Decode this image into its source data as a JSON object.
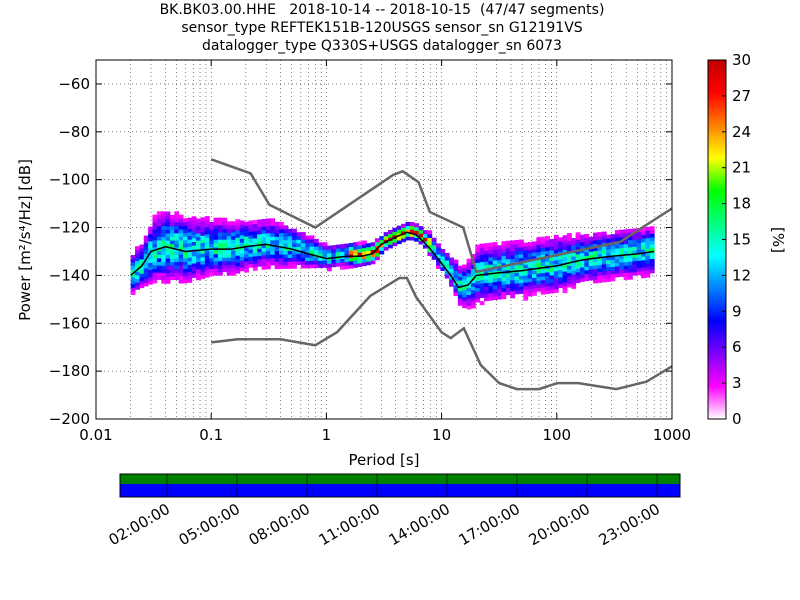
{
  "title_lines": [
    "BK.BK03.00.HHE   2018-10-14 -- 2018-10-15  (47/47 segments)",
    "sensor_type REFTEK151B-120USGS sensor_sn G12191VS",
    "datalogger_type Q330S+USGS datalogger_sn 6073"
  ],
  "chart_data": {
    "type": "heatmap",
    "subtype": "probabilistic_power_spectral_density",
    "xlabel": "Period [s]",
    "ylabel": "Power [m²/s⁴/Hz] [dB]",
    "x_scale": "log",
    "xlim": [
      0.01,
      1000
    ],
    "ylim": [
      -200,
      -50
    ],
    "x_ticks": [
      0.01,
      0.1,
      1,
      10,
      100,
      1000
    ],
    "x_tick_labels": [
      "0.01",
      "0.1",
      "1",
      "10",
      "100",
      "1000"
    ],
    "y_ticks": [
      -200,
      -180,
      -160,
      -140,
      -120,
      -100,
      -80,
      -60
    ],
    "y_tick_labels": [
      "−200",
      "−180",
      "−160",
      "−140",
      "−120",
      "−100",
      "−80",
      "−60"
    ],
    "grid": "dotted, x minor",
    "colorbar": {
      "label": "[%]",
      "range": [
        0,
        30
      ],
      "ticks": [
        0,
        3,
        6,
        9,
        12,
        15,
        18,
        21,
        24,
        27,
        30
      ],
      "tick_labels": [
        "0",
        "3",
        "6",
        "9",
        "12",
        "15",
        "18",
        "21",
        "24",
        "27",
        "30"
      ],
      "colors": [
        "#ffffff",
        "#ff00ff",
        "#8000ff",
        "#0000ff",
        "#0080ff",
        "#00ffff",
        "#00ff80",
        "#00ff00",
        "#ffff00",
        "#ff8000",
        "#ff0000",
        "#c00000"
      ]
    },
    "noise_model_high": {
      "name": "NHNM",
      "color": "#666666",
      "x": [
        0.1,
        0.22,
        0.32,
        0.8,
        3.8,
        4.6,
        6.3,
        7.9,
        15.4,
        20,
        354.8,
        1000
      ],
      "y": [
        -91.5,
        -97.4,
        -110.5,
        -120,
        -98,
        -96.5,
        -101,
        -113.5,
        -120,
        -138.5,
        -126,
        -112
      ]
    },
    "noise_model_low": {
      "name": "NLNM",
      "color": "#666666",
      "x": [
        0.1,
        0.17,
        0.4,
        0.8,
        1.24,
        2.4,
        4.3,
        5,
        6,
        10,
        12,
        15.6,
        21.9,
        31.6,
        45,
        70,
        101,
        154,
        328,
        600,
        1000
      ],
      "y": [
        -168,
        -166.7,
        -166.7,
        -169.2,
        -163.7,
        -148.6,
        -141.1,
        -141.1,
        -149,
        -163.8,
        -166.2,
        -162.1,
        -177.5,
        -185,
        -187.5,
        -187.5,
        -185,
        -185,
        -187.5,
        -184.4,
        -178
      ]
    },
    "psd_cloud": {
      "period": [
        0.02,
        0.025,
        0.03,
        0.04,
        0.06,
        0.1,
        0.15,
        0.2,
        0.3,
        0.5,
        0.7,
        1,
        1.5,
        2,
        2.5,
        3,
        4,
        5,
        6,
        7,
        8,
        10,
        12,
        14,
        17,
        20,
        30,
        50,
        70,
        100,
        150,
        200,
        300,
        500,
        700
      ],
      "mode_db": [
        -140,
        -136,
        -130,
        -128,
        -130,
        -129,
        -129,
        -128,
        -127,
        -129,
        -131,
        -133,
        -132,
        -132,
        -131,
        -127,
        -124,
        -122,
        -123,
        -126,
        -129,
        -135,
        -140,
        -145,
        -144,
        -140,
        -139,
        -138,
        -137,
        -136,
        -134,
        -133,
        -132,
        -131,
        -130
      ],
      "spread_db": [
        5,
        6,
        8,
        9,
        8,
        7,
        7,
        6,
        6,
        5,
        4,
        3,
        3,
        2.5,
        2.5,
        2,
        2,
        2,
        2,
        2,
        3,
        3,
        4,
        5,
        6,
        7,
        7,
        7,
        7,
        7,
        6,
        6,
        6,
        6,
        6
      ]
    }
  },
  "time_axis": {
    "tick_labels": [
      "02:00:00",
      "05:00:00",
      "08:00:00",
      "11:00:00",
      "14:00:00",
      "17:00:00",
      "20:00:00",
      "23:00:00"
    ],
    "data_coverage_color": "#008000",
    "gap_free_color": "#0000ff"
  }
}
